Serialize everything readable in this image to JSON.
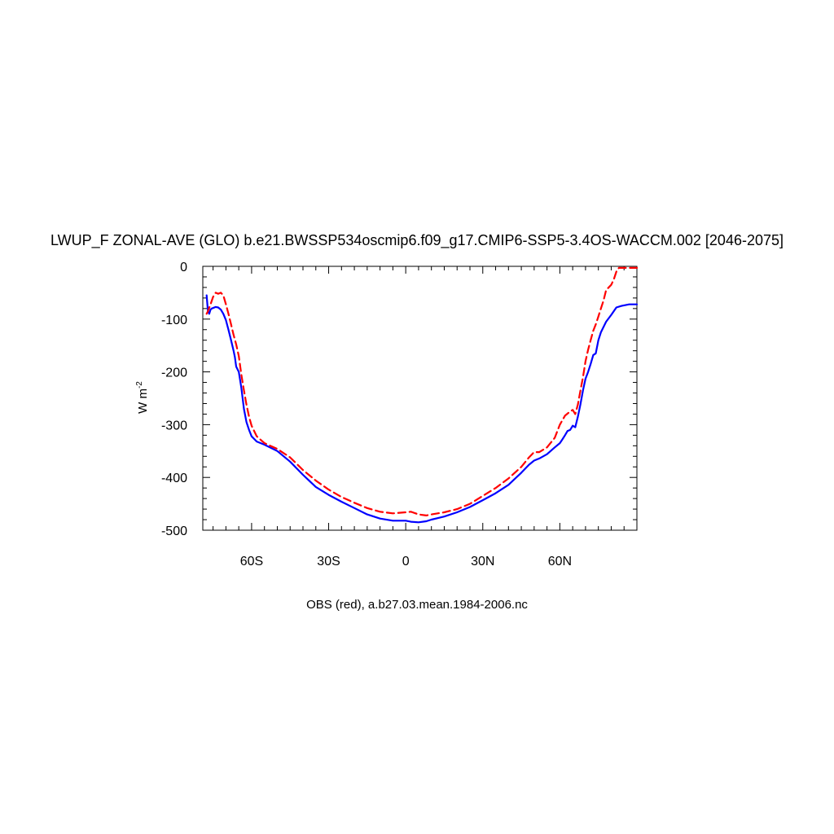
{
  "chart_data": {
    "type": "line",
    "title": "LWUP_F ZONAL-AVE (GLO) b.e21.BWSSP534oscmip6.f09_g17.CMIP6-SSP5-3.4OS-WACCM.002 [2046-2075]",
    "ylabel": "W m",
    "ylabel_superscript": "-2",
    "caption": "OBS (red), a.b27.03.mean.1984-2006.nc",
    "xlim": [
      -79,
      90
    ],
    "ylim": [
      -500,
      0
    ],
    "xticks": [
      {
        "value": -60,
        "label": "60S"
      },
      {
        "value": -30,
        "label": "30S"
      },
      {
        "value": 0,
        "label": "0"
      },
      {
        "value": 30,
        "label": "30N"
      },
      {
        "value": 60,
        "label": "60N"
      }
    ],
    "yticks": [
      {
        "value": 0,
        "label": "0"
      },
      {
        "value": -100,
        "label": "-100"
      },
      {
        "value": -200,
        "label": "-200"
      },
      {
        "value": -300,
        "label": "-300"
      },
      {
        "value": -400,
        "label": "-400"
      },
      {
        "value": -500,
        "label": "-500"
      }
    ],
    "grid": false,
    "series": [
      {
        "color": "#0000ff",
        "dash": "solid",
        "x": [
          -77.5,
          -77,
          -76.5,
          -76,
          -75.5,
          -75,
          -74,
          -73,
          -72,
          -71,
          -70,
          -69,
          -68,
          -67,
          -66.5,
          -66,
          -65,
          -64,
          -63,
          -62,
          -61,
          -60,
          -58,
          -55,
          -50,
          -45,
          -40,
          -35,
          -30,
          -25,
          -20,
          -15,
          -10,
          -5,
          0,
          2,
          5,
          8,
          10,
          15,
          20,
          25,
          30,
          35,
          40,
          45,
          48,
          50,
          52,
          55,
          58,
          60,
          61,
          62,
          63,
          64,
          65,
          66,
          67,
          68,
          69,
          70,
          71,
          72,
          73,
          74,
          75,
          76,
          78,
          80,
          82,
          84,
          87,
          90
        ],
        "y": [
          -55,
          -85,
          -90,
          -82,
          -80,
          -79,
          -77,
          -78,
          -82,
          -90,
          -102,
          -120,
          -140,
          -160,
          -172,
          -190,
          -200,
          -230,
          -270,
          -295,
          -310,
          -322,
          -332,
          -338,
          -350,
          -370,
          -395,
          -418,
          -433,
          -446,
          -458,
          -470,
          -478,
          -482,
          -482,
          -484,
          -485,
          -483,
          -480,
          -474,
          -466,
          -456,
          -443,
          -430,
          -414,
          -391,
          -376,
          -368,
          -364,
          -356,
          -343,
          -335,
          -328,
          -320,
          -312,
          -310,
          -302,
          -305,
          -285,
          -262,
          -235,
          -213,
          -200,
          -185,
          -168,
          -165,
          -140,
          -125,
          -105,
          -92,
          -78,
          -75,
          -72,
          -72
        ]
      },
      {
        "color": "#ff0000",
        "dash": "dashed",
        "x": [
          -77.5,
          -77,
          -76,
          -75,
          -74,
          -73,
          -72,
          -71,
          -70,
          -69,
          -68,
          -67,
          -66,
          -65,
          -64,
          -63,
          -62,
          -61,
          -60,
          -58,
          -55,
          -50,
          -45,
          -40,
          -35,
          -30,
          -25,
          -20,
          -15,
          -10,
          -5,
          0,
          2,
          5,
          8,
          10,
          15,
          20,
          25,
          30,
          35,
          40,
          45,
          48,
          50,
          52,
          55,
          58,
          60,
          62,
          64,
          65,
          66,
          67,
          68,
          69,
          70,
          71,
          72,
          73,
          74,
          75,
          76,
          77,
          78,
          80,
          81,
          82,
          83,
          84,
          90
        ],
        "y": [
          -90,
          -85,
          -72,
          -58,
          -50,
          -52,
          -50,
          -55,
          -72,
          -90,
          -110,
          -130,
          -148,
          -170,
          -205,
          -235,
          -262,
          -285,
          -302,
          -322,
          -335,
          -346,
          -362,
          -386,
          -406,
          -423,
          -437,
          -448,
          -458,
          -465,
          -468,
          -466,
          -465,
          -470,
          -472,
          -470,
          -466,
          -460,
          -450,
          -435,
          -420,
          -402,
          -380,
          -362,
          -352,
          -352,
          -343,
          -325,
          -300,
          -283,
          -275,
          -272,
          -280,
          -262,
          -236,
          -210,
          -180,
          -158,
          -140,
          -122,
          -110,
          -95,
          -80,
          -65,
          -45,
          -35,
          -25,
          -10,
          -3,
          -3,
          -3
        ]
      }
    ]
  }
}
